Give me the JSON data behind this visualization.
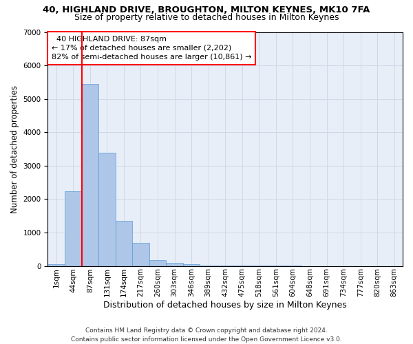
{
  "title_line1": "40, HIGHLAND DRIVE, BROUGHTON, MILTON KEYNES, MK10 7FA",
  "title_line2": "Size of property relative to detached houses in Milton Keynes",
  "xlabel": "Distribution of detached houses by size in Milton Keynes",
  "ylabel": "Number of detached properties",
  "footer": "Contains HM Land Registry data © Crown copyright and database right 2024.\nContains public sector information licensed under the Open Government Licence v3.0.",
  "bar_labels": [
    "1sqm",
    "44sqm",
    "87sqm",
    "131sqm",
    "174sqm",
    "217sqm",
    "260sqm",
    "303sqm",
    "346sqm",
    "389sqm",
    "432sqm",
    "475sqm",
    "518sqm",
    "561sqm",
    "604sqm",
    "648sqm",
    "691sqm",
    "734sqm",
    "777sqm",
    "820sqm",
    "863sqm"
  ],
  "bar_values": [
    60,
    2240,
    5440,
    3380,
    1340,
    700,
    180,
    95,
    45,
    10,
    5,
    3,
    2,
    1,
    1,
    0,
    0,
    0,
    0,
    0,
    0
  ],
  "bar_color": "#aec6e8",
  "bar_edge_color": "#5b9bd5",
  "vline_x": 1.5,
  "vline_color": "red",
  "annotation_text": "  40 HIGHLAND DRIVE: 87sqm\n← 17% of detached houses are smaller (2,202)\n82% of semi-detached houses are larger (10,861) →",
  "annotation_box_color": "white",
  "annotation_box_edge": "red",
  "ylim": [
    0,
    7000
  ],
  "yticks": [
    0,
    1000,
    2000,
    3000,
    4000,
    5000,
    6000,
    7000
  ],
  "grid_color": "#d0d8e8",
  "bg_color": "#e8eef8",
  "title1_fontsize": 9.5,
  "title2_fontsize": 9,
  "xlabel_fontsize": 9,
  "ylabel_fontsize": 8.5,
  "tick_fontsize": 7.5,
  "footer_fontsize": 6.5,
  "annot_fontsize": 8
}
